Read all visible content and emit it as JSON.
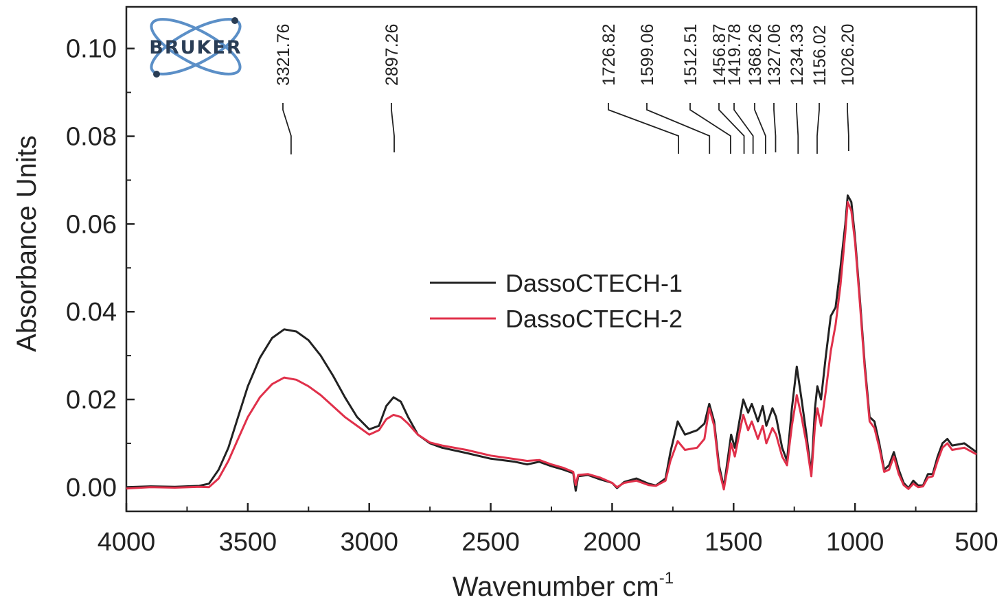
{
  "chart_data": {
    "type": "line",
    "title": "",
    "xlabel": "Wavenumber cm",
    "xlabel_superscript": "-1",
    "ylabel": "Absorbance Units",
    "xlim": [
      4000,
      500
    ],
    "ylim": [
      -0.0055,
      0.1095
    ],
    "x_reversed": true,
    "grid": false,
    "legend_position": "center-right",
    "x_ticks": [
      "4000",
      "3500",
      "3000",
      "2500",
      "2000",
      "1500",
      "1000",
      "500"
    ],
    "y_ticks": [
      "0.00",
      "0.02",
      "0.04",
      "0.06",
      "0.08",
      "0.10"
    ],
    "logo_text": "BRUKER",
    "peak_labels": [
      "3321.76",
      "2897.26",
      "1726.82",
      "1599.06",
      "1512.51",
      "1456.87",
      "1419.78",
      "1368.26",
      "1327.06",
      "1234.33",
      "1156.02",
      "1026.20"
    ],
    "series": [
      {
        "name": "DassoCTECH-1",
        "color": "#222222",
        "points": [
          [
            4000,
            0.0
          ],
          [
            3900,
            0.0002
          ],
          [
            3800,
            0.0001
          ],
          [
            3700,
            0.0003
          ],
          [
            3660,
            0.0008
          ],
          [
            3620,
            0.004
          ],
          [
            3580,
            0.009
          ],
          [
            3540,
            0.016
          ],
          [
            3500,
            0.023
          ],
          [
            3450,
            0.0295
          ],
          [
            3400,
            0.034
          ],
          [
            3350,
            0.036
          ],
          [
            3300,
            0.0355
          ],
          [
            3250,
            0.0335
          ],
          [
            3200,
            0.03
          ],
          [
            3150,
            0.0255
          ],
          [
            3100,
            0.0205
          ],
          [
            3050,
            0.016
          ],
          [
            3000,
            0.0132
          ],
          [
            2960,
            0.014
          ],
          [
            2930,
            0.0185
          ],
          [
            2900,
            0.0205
          ],
          [
            2870,
            0.0195
          ],
          [
            2840,
            0.016
          ],
          [
            2800,
            0.012
          ],
          [
            2750,
            0.01
          ],
          [
            2700,
            0.009
          ],
          [
            2600,
            0.0078
          ],
          [
            2500,
            0.0065
          ],
          [
            2400,
            0.0058
          ],
          [
            2350,
            0.0052
          ],
          [
            2300,
            0.0058
          ],
          [
            2250,
            0.0048
          ],
          [
            2200,
            0.004
          ],
          [
            2160,
            0.0032
          ],
          [
            2150,
            -0.0008
          ],
          [
            2140,
            0.0025
          ],
          [
            2100,
            0.0028
          ],
          [
            2050,
            0.0018
          ],
          [
            2000,
            0.001
          ],
          [
            1980,
            -0.0002
          ],
          [
            1950,
            0.0012
          ],
          [
            1900,
            0.002
          ],
          [
            1850,
            0.0008
          ],
          [
            1820,
            0.0004
          ],
          [
            1780,
            0.002
          ],
          [
            1760,
            0.008
          ],
          [
            1730,
            0.015
          ],
          [
            1700,
            0.012
          ],
          [
            1650,
            0.013
          ],
          [
            1620,
            0.0145
          ],
          [
            1600,
            0.019
          ],
          [
            1580,
            0.015
          ],
          [
            1560,
            0.005
          ],
          [
            1540,
            0.0
          ],
          [
            1520,
            0.008
          ],
          [
            1510,
            0.012
          ],
          [
            1495,
            0.009
          ],
          [
            1470,
            0.017
          ],
          [
            1460,
            0.02
          ],
          [
            1440,
            0.017
          ],
          [
            1425,
            0.019
          ],
          [
            1400,
            0.015
          ],
          [
            1380,
            0.0185
          ],
          [
            1365,
            0.014
          ],
          [
            1340,
            0.018
          ],
          [
            1325,
            0.016
          ],
          [
            1300,
            0.009
          ],
          [
            1280,
            0.006
          ],
          [
            1260,
            0.018
          ],
          [
            1240,
            0.0275
          ],
          [
            1220,
            0.02
          ],
          [
            1200,
            0.012
          ],
          [
            1180,
            0.003
          ],
          [
            1165,
            0.018
          ],
          [
            1155,
            0.023
          ],
          [
            1140,
            0.02
          ],
          [
            1120,
            0.03
          ],
          [
            1100,
            0.039
          ],
          [
            1080,
            0.041
          ],
          [
            1060,
            0.05
          ],
          [
            1040,
            0.06
          ],
          [
            1030,
            0.0665
          ],
          [
            1015,
            0.065
          ],
          [
            1000,
            0.057
          ],
          [
            980,
            0.043
          ],
          [
            960,
            0.028
          ],
          [
            940,
            0.016
          ],
          [
            920,
            0.015
          ],
          [
            900,
            0.01
          ],
          [
            880,
            0.004
          ],
          [
            860,
            0.005
          ],
          [
            840,
            0.008
          ],
          [
            820,
            0.004
          ],
          [
            800,
            0.001
          ],
          [
            780,
            -0.0002
          ],
          [
            760,
            0.0015
          ],
          [
            740,
            0.0004
          ],
          [
            720,
            0.0004
          ],
          [
            700,
            0.003
          ],
          [
            680,
            0.003
          ],
          [
            660,
            0.007
          ],
          [
            640,
            0.01
          ],
          [
            620,
            0.011
          ],
          [
            600,
            0.0095
          ],
          [
            550,
            0.01
          ],
          [
            500,
            0.008
          ]
        ]
      },
      {
        "name": "DassoCTECH-2",
        "color": "#e0304a",
        "points": [
          [
            4000,
            -0.0003
          ],
          [
            3900,
            0.0
          ],
          [
            3800,
            -0.0001
          ],
          [
            3700,
            0.0001
          ],
          [
            3660,
            0.0
          ],
          [
            3620,
            0.002
          ],
          [
            3580,
            0.006
          ],
          [
            3540,
            0.011
          ],
          [
            3500,
            0.016
          ],
          [
            3450,
            0.0205
          ],
          [
            3400,
            0.0235
          ],
          [
            3350,
            0.025
          ],
          [
            3300,
            0.0245
          ],
          [
            3250,
            0.023
          ],
          [
            3200,
            0.021
          ],
          [
            3150,
            0.0185
          ],
          [
            3100,
            0.016
          ],
          [
            3050,
            0.014
          ],
          [
            3000,
            0.012
          ],
          [
            2960,
            0.013
          ],
          [
            2930,
            0.0155
          ],
          [
            2900,
            0.0165
          ],
          [
            2870,
            0.016
          ],
          [
            2840,
            0.0145
          ],
          [
            2800,
            0.012
          ],
          [
            2750,
            0.0102
          ],
          [
            2700,
            0.0095
          ],
          [
            2600,
            0.0085
          ],
          [
            2500,
            0.0072
          ],
          [
            2400,
            0.0064
          ],
          [
            2350,
            0.006
          ],
          [
            2300,
            0.0062
          ],
          [
            2250,
            0.0052
          ],
          [
            2200,
            0.0044
          ],
          [
            2160,
            0.0035
          ],
          [
            2150,
            0.0005
          ],
          [
            2140,
            0.0028
          ],
          [
            2100,
            0.003
          ],
          [
            2050,
            0.0022
          ],
          [
            2000,
            0.001
          ],
          [
            1980,
            0.0
          ],
          [
            1950,
            0.001
          ],
          [
            1900,
            0.0015
          ],
          [
            1850,
            0.0005
          ],
          [
            1820,
            0.0003
          ],
          [
            1780,
            0.0015
          ],
          [
            1760,
            0.006
          ],
          [
            1730,
            0.0105
          ],
          [
            1700,
            0.0085
          ],
          [
            1650,
            0.009
          ],
          [
            1620,
            0.011
          ],
          [
            1600,
            0.018
          ],
          [
            1580,
            0.014
          ],
          [
            1560,
            0.004
          ],
          [
            1540,
            -0.0005
          ],
          [
            1520,
            0.006
          ],
          [
            1510,
            0.01
          ],
          [
            1495,
            0.007
          ],
          [
            1470,
            0.014
          ],
          [
            1460,
            0.0165
          ],
          [
            1440,
            0.013
          ],
          [
            1425,
            0.015
          ],
          [
            1400,
            0.011
          ],
          [
            1380,
            0.014
          ],
          [
            1365,
            0.01
          ],
          [
            1340,
            0.0135
          ],
          [
            1325,
            0.012
          ],
          [
            1300,
            0.007
          ],
          [
            1280,
            0.005
          ],
          [
            1260,
            0.014
          ],
          [
            1240,
            0.021
          ],
          [
            1220,
            0.016
          ],
          [
            1200,
            0.01
          ],
          [
            1180,
            0.0025
          ],
          [
            1165,
            0.014
          ],
          [
            1155,
            0.018
          ],
          [
            1140,
            0.014
          ],
          [
            1120,
            0.022
          ],
          [
            1100,
            0.031
          ],
          [
            1080,
            0.037
          ],
          [
            1060,
            0.046
          ],
          [
            1040,
            0.058
          ],
          [
            1030,
            0.065
          ],
          [
            1015,
            0.063
          ],
          [
            1000,
            0.056
          ],
          [
            980,
            0.042
          ],
          [
            960,
            0.027
          ],
          [
            940,
            0.015
          ],
          [
            920,
            0.0135
          ],
          [
            900,
            0.009
          ],
          [
            880,
            0.0035
          ],
          [
            860,
            0.004
          ],
          [
            840,
            0.007
          ],
          [
            820,
            0.003
          ],
          [
            800,
            0.0005
          ],
          [
            780,
            -0.0004
          ],
          [
            760,
            0.0008
          ],
          [
            740,
            0.0
          ],
          [
            720,
            0.0002
          ],
          [
            700,
            0.0022
          ],
          [
            680,
            0.0025
          ],
          [
            660,
            0.006
          ],
          [
            640,
            0.009
          ],
          [
            620,
            0.01
          ],
          [
            600,
            0.0085
          ],
          [
            550,
            0.009
          ],
          [
            500,
            0.0075
          ]
        ]
      }
    ]
  }
}
